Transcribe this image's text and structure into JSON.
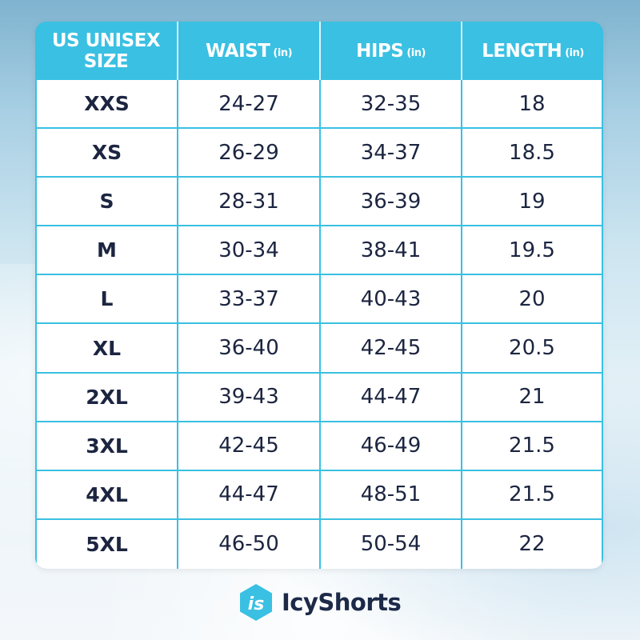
{
  "header": {
    "size_label": "US UNISEX SIZE",
    "waist_label": "WAIST",
    "hips_label": "HIPS",
    "length_label": "LENGTH",
    "unit": "(in)"
  },
  "rows": [
    {
      "size": "XXS",
      "waist": "24-27",
      "hips": "32-35",
      "length": "18"
    },
    {
      "size": "XS",
      "waist": "26-29",
      "hips": "34-37",
      "length": "18.5"
    },
    {
      "size": "S",
      "waist": "28-31",
      "hips": "36-39",
      "length": "19"
    },
    {
      "size": "M",
      "waist": "30-34",
      "hips": "38-41",
      "length": "19.5"
    },
    {
      "size": "L",
      "waist": "33-37",
      "hips": "40-43",
      "length": "20"
    },
    {
      "size": "XL",
      "waist": "36-40",
      "hips": "42-45",
      "length": "20.5"
    },
    {
      "size": "2XL",
      "waist": "39-43",
      "hips": "44-47",
      "length": "21"
    },
    {
      "size": "3XL",
      "waist": "42-45",
      "hips": "46-49",
      "length": "21.5"
    },
    {
      "size": "4XL",
      "waist": "44-47",
      "hips": "48-51",
      "length": "21.5"
    },
    {
      "size": "5XL",
      "waist": "46-50",
      "hips": "50-54",
      "length": "22"
    }
  ],
  "brand": {
    "name": "IcyShorts",
    "logo_mark": "is",
    "accent": "#3ac0e2",
    "text_color": "#1c2a48"
  }
}
